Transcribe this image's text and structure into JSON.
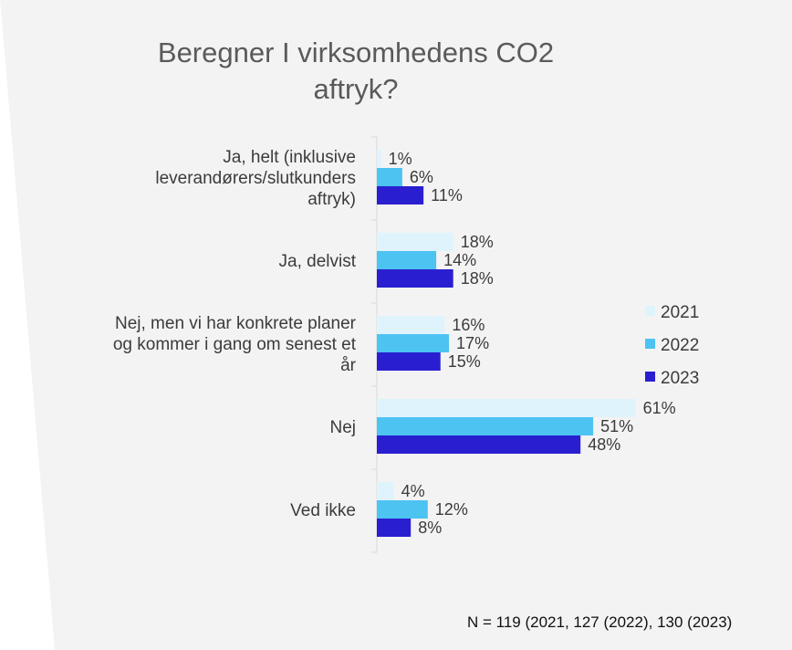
{
  "colors": {
    "series": [
      "#dff3fc",
      "#4dc3f2",
      "#2a1fd0"
    ],
    "text": "#3b3b3b",
    "axis": "#d9d9d9"
  },
  "chart_data": {
    "type": "bar",
    "orientation": "horizontal",
    "title_lines": [
      "Beregner I virksomhedens CO2",
      "aftryk?"
    ],
    "categories": [
      [
        "Ja, helt (inklusive",
        "leverandørers/slutkunders",
        "aftryk)"
      ],
      [
        "Ja, delvist"
      ],
      [
        "Nej, men vi har konkrete planer",
        "og kommer i gang om senest et",
        "år"
      ],
      [
        "Nej"
      ],
      [
        "Ved ikke"
      ]
    ],
    "series": [
      {
        "name": "2021",
        "values": [
          1,
          18,
          16,
          61,
          4
        ]
      },
      {
        "name": "2022",
        "values": [
          6,
          14,
          17,
          51,
          12
        ]
      },
      {
        "name": "2023",
        "values": [
          11,
          18,
          15,
          48,
          8
        ]
      }
    ],
    "value_suffix": "%",
    "legend_position": "right",
    "grid": false
  },
  "footnote": "N = 119 (2021, 127 (2022), 130 (2023)"
}
